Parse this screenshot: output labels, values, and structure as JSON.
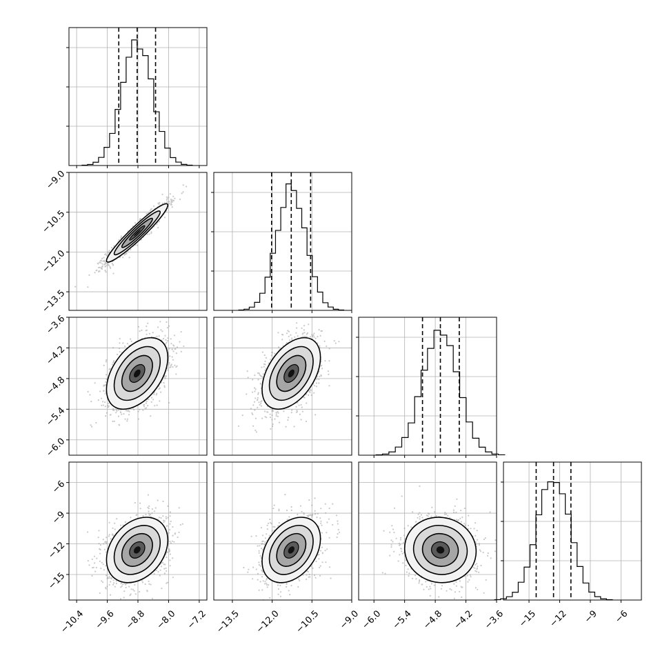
{
  "chart_data": {
    "type": "corner",
    "grid": true,
    "params": [
      {
        "range": [
          -10.6,
          -7.0
        ],
        "ticks": [
          -10.4,
          -9.6,
          -8.8,
          -8.0,
          -7.2
        ],
        "tick_labels": [
          "−10.4",
          "−9.6",
          "−8.8",
          "−8.0",
          "−7.2"
        ],
        "quantiles": [
          -9.3,
          -8.82,
          -8.34
        ],
        "mean": -8.82,
        "sd": 0.4
      },
      {
        "range": [
          -14.2,
          -9.0
        ],
        "ticks": [
          -13.5,
          -12.0,
          -10.5,
          -9.0
        ],
        "tick_labels": [
          "−13.5",
          "−12.0",
          "−10.5",
          "−9.0"
        ],
        "quantiles": [
          -12.02,
          -11.28,
          -10.55
        ],
        "mean": -11.28,
        "sd": 0.55
      },
      {
        "range": [
          -6.3,
          -3.6
        ],
        "ticks": [
          -6.0,
          -5.4,
          -4.8,
          -4.2,
          -3.6
        ],
        "tick_labels": [
          "−6.0",
          "−5.4",
          "−4.8",
          "−4.2",
          "−3.6"
        ],
        "quantiles": [
          -5.05,
          -4.7,
          -4.33
        ],
        "mean": -4.7,
        "sd": 0.35
      },
      {
        "range": [
          -17.5,
          -4.0
        ],
        "ticks": [
          -15,
          -12,
          -9,
          -6
        ],
        "tick_labels": [
          "−15",
          "−12",
          "−9",
          "−6"
        ],
        "quantiles": [
          -14.3,
          -12.6,
          -10.9
        ],
        "mean": -12.6,
        "sd": 1.6
      }
    ],
    "pairs": [
      {
        "row": 1,
        "col": 0,
        "corr": 0.95
      },
      {
        "row": 2,
        "col": 0,
        "corr": 0.45
      },
      {
        "row": 2,
        "col": 1,
        "corr": 0.45
      },
      {
        "row": 3,
        "col": 0,
        "corr": 0.3
      },
      {
        "row": 3,
        "col": 1,
        "corr": 0.35
      },
      {
        "row": 3,
        "col": 2,
        "corr": -0.05
      }
    ],
    "y_tick_labels": {
      "1": [
        "−9.0",
        "−10.5",
        "−12.0",
        "−13.5"
      ],
      "2": [
        "−3.6",
        "−4.2",
        "−4.8",
        "−5.4",
        "−6.0"
      ],
      "3": [
        "−6",
        "−9",
        "−12",
        "−15"
      ]
    }
  }
}
